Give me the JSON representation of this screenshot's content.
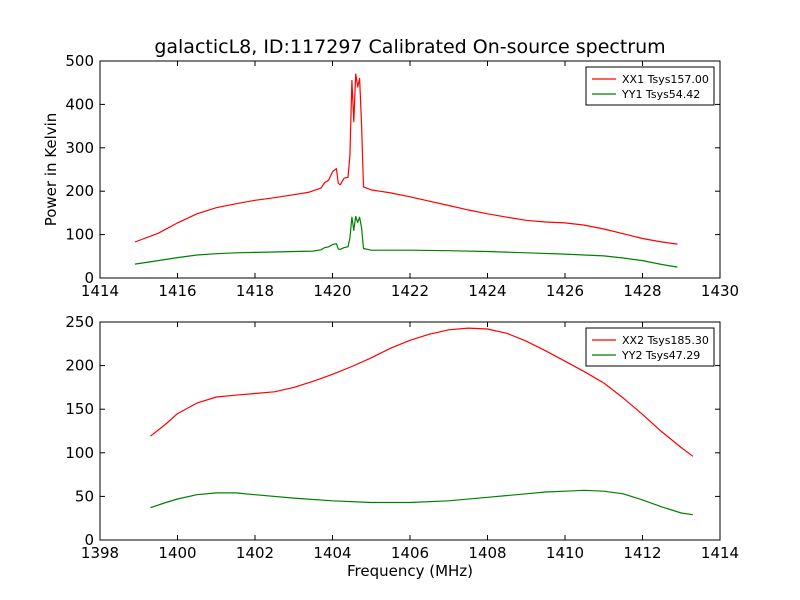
{
  "figure": {
    "title": "galacticL8, ID:117297 Calibrated On-source spectrum",
    "background": "#ffffff"
  },
  "chart_data": [
    {
      "type": "line",
      "title": "galacticL8, ID:117297 Calibrated On-source spectrum",
      "xlabel": "",
      "ylabel": "Power in Kelvin",
      "xlim": [
        1414,
        1430
      ],
      "ylim": [
        0,
        500
      ],
      "xticks": [
        1414,
        1416,
        1418,
        1420,
        1422,
        1424,
        1426,
        1428,
        1430
      ],
      "yticks": [
        0,
        100,
        200,
        300,
        400,
        500
      ],
      "grid": false,
      "legend_position": "top-right",
      "series": [
        {
          "name": "XX1 Tsys157.00",
          "color": "#ff0000",
          "x": [
            1414.9,
            1415.5,
            1416.0,
            1416.5,
            1417.0,
            1417.5,
            1418.0,
            1418.5,
            1419.0,
            1419.4,
            1419.7,
            1419.8,
            1419.9,
            1420.0,
            1420.1,
            1420.15,
            1420.2,
            1420.3,
            1420.4,
            1420.45,
            1420.5,
            1420.55,
            1420.6,
            1420.65,
            1420.7,
            1420.75,
            1420.8,
            1421.0,
            1421.5,
            1422.0,
            1422.5,
            1423.0,
            1423.5,
            1424.0,
            1424.5,
            1425.0,
            1425.5,
            1426.0,
            1426.5,
            1427.0,
            1427.5,
            1428.0,
            1428.5,
            1428.9
          ],
          "y": [
            83,
            103,
            127,
            148,
            162,
            171,
            179,
            185,
            192,
            198,
            207,
            220,
            225,
            245,
            252,
            218,
            215,
            230,
            232,
            282,
            455,
            360,
            470,
            440,
            460,
            350,
            210,
            203,
            196,
            187,
            177,
            167,
            157,
            148,
            140,
            133,
            129,
            127,
            122,
            113,
            102,
            91,
            83,
            78
          ]
        },
        {
          "name": "YY1 Tsys54.42",
          "color": "#008000",
          "x": [
            1414.9,
            1415.5,
            1416.0,
            1416.5,
            1417.0,
            1417.5,
            1418.0,
            1418.5,
            1419.0,
            1419.5,
            1419.7,
            1419.8,
            1419.9,
            1420.0,
            1420.1,
            1420.15,
            1420.2,
            1420.3,
            1420.4,
            1420.45,
            1420.5,
            1420.55,
            1420.6,
            1420.65,
            1420.7,
            1420.75,
            1420.8,
            1421.0,
            1422.0,
            1423.0,
            1424.0,
            1425.0,
            1426.0,
            1427.0,
            1427.5,
            1428.0,
            1428.5,
            1428.9
          ],
          "y": [
            32,
            40,
            47,
            53,
            56,
            58,
            59,
            60,
            61,
            62,
            65,
            70,
            72,
            77,
            79,
            67,
            66,
            70,
            72,
            92,
            140,
            110,
            142,
            128,
            140,
            115,
            68,
            64,
            64,
            63,
            61,
            58,
            55,
            51,
            46,
            40,
            31,
            25
          ]
        }
      ]
    },
    {
      "type": "line",
      "title": "",
      "xlabel": "Frequency (MHz)",
      "ylabel": "",
      "xlim": [
        1398,
        1414
      ],
      "ylim": [
        0,
        250
      ],
      "xticks": [
        1398,
        1400,
        1402,
        1404,
        1406,
        1408,
        1410,
        1412,
        1414
      ],
      "yticks": [
        0,
        50,
        100,
        150,
        200,
        250
      ],
      "grid": false,
      "legend_position": "top-right",
      "series": [
        {
          "name": "XX2 Tsys185.30",
          "color": "#ff0000",
          "x": [
            1399.3,
            1399.7,
            1400.0,
            1400.5,
            1401.0,
            1401.5,
            1402.0,
            1402.5,
            1403.0,
            1403.5,
            1404.0,
            1404.5,
            1405.0,
            1405.5,
            1406.0,
            1406.5,
            1407.0,
            1407.5,
            1408.0,
            1408.5,
            1409.0,
            1409.5,
            1410.0,
            1410.5,
            1411.0,
            1411.5,
            1412.0,
            1412.5,
            1413.0,
            1413.3
          ],
          "y": [
            119,
            133,
            145,
            157,
            164,
            166,
            168,
            170,
            175,
            182,
            190,
            199,
            209,
            220,
            229,
            236,
            241,
            243,
            242,
            237,
            228,
            217,
            205,
            193,
            180,
            163,
            144,
            124,
            106,
            96
          ]
        },
        {
          "name": "YY2 Tsys47.29",
          "color": "#008000",
          "x": [
            1399.3,
            1399.7,
            1400.0,
            1400.5,
            1401.0,
            1401.5,
            1402.0,
            1403.0,
            1404.0,
            1405.0,
            1406.0,
            1407.0,
            1408.0,
            1409.0,
            1409.5,
            1410.0,
            1410.5,
            1411.0,
            1411.5,
            1412.0,
            1412.5,
            1413.0,
            1413.3
          ],
          "y": [
            37,
            43,
            47,
            52,
            54,
            54,
            52,
            48,
            45,
            43,
            43,
            45,
            49,
            53,
            55,
            56,
            57,
            56,
            53,
            46,
            38,
            31,
            29
          ]
        }
      ]
    }
  ]
}
